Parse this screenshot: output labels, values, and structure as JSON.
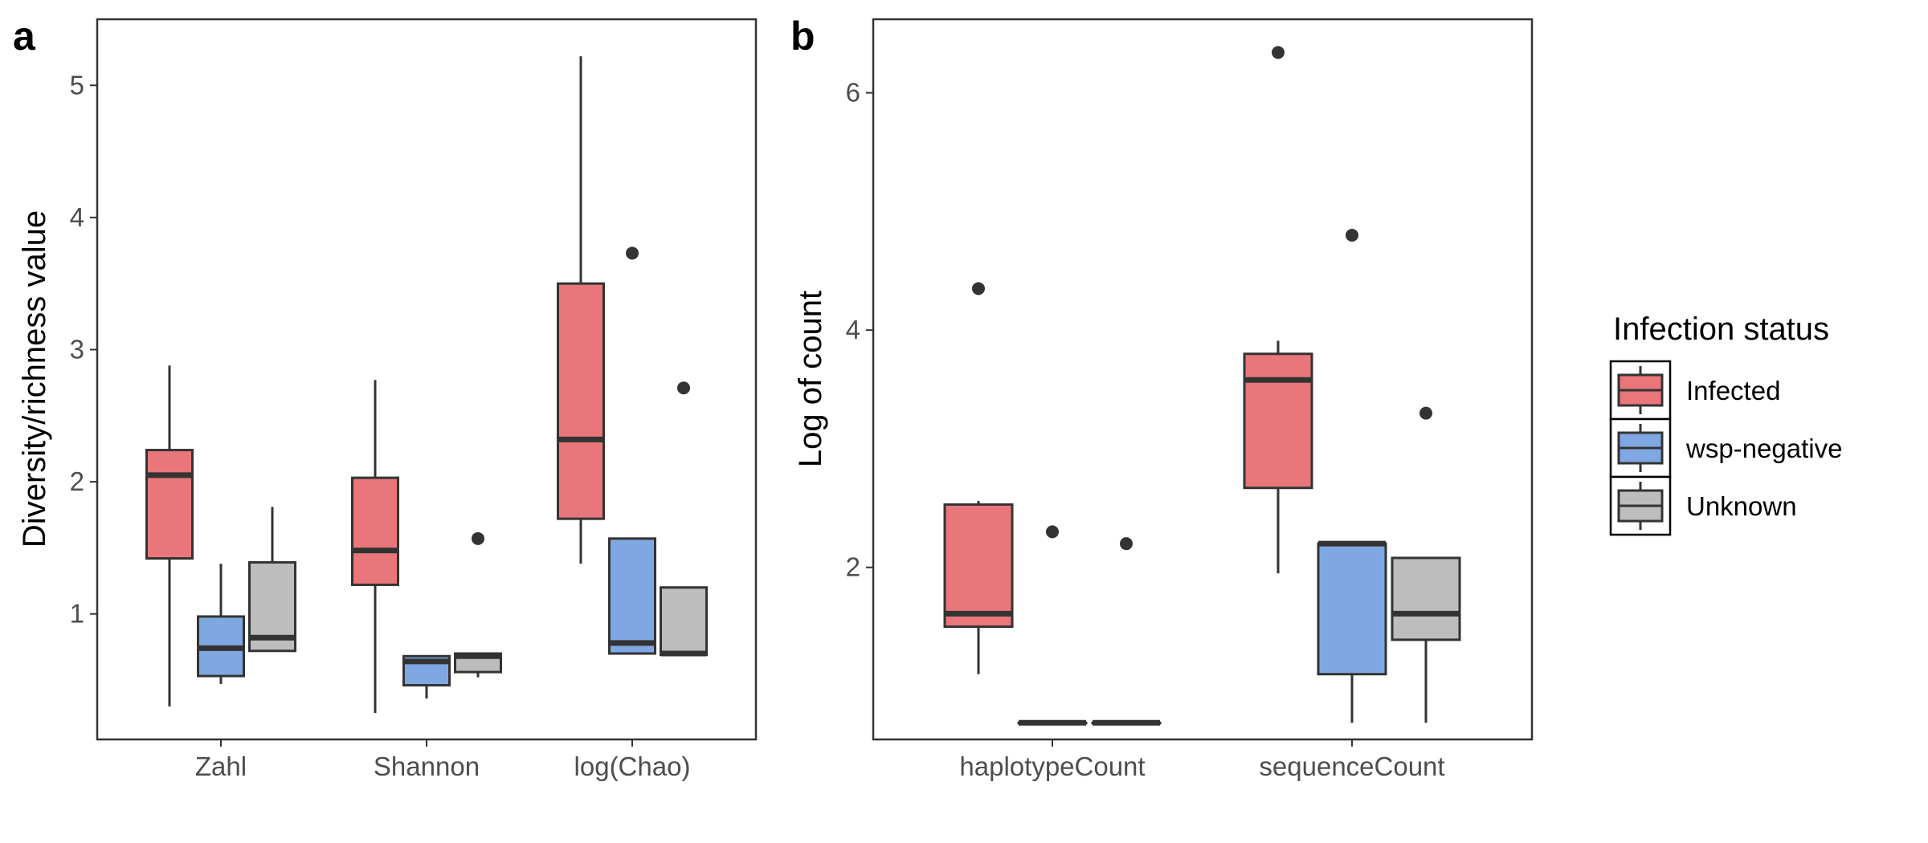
{
  "chart_data": [
    {
      "panel_tag": "a",
      "type": "box",
      "ylabel": "Diversity/richness value",
      "xlabel": "",
      "ylim": [
        0.05,
        5.5
      ],
      "yticks": [
        1,
        2,
        3,
        4,
        5
      ],
      "categories": [
        "Zahl",
        "Shannon",
        "log(Chao)"
      ],
      "series": [
        {
          "name": "Infected",
          "boxes": [
            {
              "whisker_low": 0.3,
              "q1": 1.42,
              "median": 2.05,
              "q3": 2.24,
              "whisker_high": 2.88,
              "outliers": []
            },
            {
              "whisker_low": 0.25,
              "q1": 1.22,
              "median": 1.48,
              "q3": 2.03,
              "whisker_high": 2.77,
              "outliers": []
            },
            {
              "whisker_low": 1.38,
              "q1": 1.72,
              "median": 2.32,
              "q3": 3.5,
              "whisker_high": 5.22,
              "outliers": []
            }
          ]
        },
        {
          "name": "wsp-negative",
          "boxes": [
            {
              "whisker_low": 0.47,
              "q1": 0.53,
              "median": 0.74,
              "q3": 0.98,
              "whisker_high": 1.38,
              "outliers": []
            },
            {
              "whisker_low": 0.36,
              "q1": 0.46,
              "median": 0.64,
              "q3": 0.68,
              "whisker_high": 0.68,
              "outliers": []
            },
            {
              "whisker_low": 0.7,
              "q1": 0.7,
              "median": 0.78,
              "q3": 1.57,
              "whisker_high": 1.57,
              "outliers": [
                3.73
              ]
            }
          ]
        },
        {
          "name": "Unknown",
          "boxes": [
            {
              "whisker_low": 0.72,
              "q1": 0.72,
              "median": 0.82,
              "q3": 1.39,
              "whisker_high": 1.81,
              "outliers": []
            },
            {
              "whisker_low": 0.52,
              "q1": 0.56,
              "median": 0.68,
              "q3": 0.7,
              "whisker_high": 0.7,
              "outliers": [
                1.57
              ]
            },
            {
              "whisker_low": 0.69,
              "q1": 0.69,
              "median": 0.7,
              "q3": 1.2,
              "whisker_high": 1.2,
              "outliers": [
                2.71
              ]
            }
          ]
        }
      ]
    },
    {
      "panel_tag": "b",
      "type": "box",
      "ylabel": "Log of count",
      "xlabel": "",
      "ylim": [
        0.55,
        6.62
      ],
      "yticks": [
        2,
        4,
        6
      ],
      "categories": [
        "haplotypeCount",
        "sequenceCount"
      ],
      "series": [
        {
          "name": "Infected",
          "boxes": [
            {
              "whisker_low": 1.1,
              "q1": 1.5,
              "median": 1.61,
              "q3": 2.53,
              "whisker_high": 2.56,
              "outliers": [
                4.35
              ]
            },
            {
              "whisker_low": 1.95,
              "q1": 2.67,
              "median": 3.58,
              "q3": 3.8,
              "whisker_high": 3.91,
              "outliers": [
                6.34
              ]
            }
          ]
        },
        {
          "name": "wsp-negative",
          "boxes": [
            {
              "whisker_low": 0.69,
              "q1": 0.69,
              "median": 0.69,
              "q3": 0.69,
              "whisker_high": 0.69,
              "outliers": [
                2.3
              ]
            },
            {
              "whisker_low": 0.69,
              "q1": 1.1,
              "median": 2.2,
              "q3": 2.2,
              "whisker_high": 2.2,
              "outliers": [
                4.8
              ]
            }
          ]
        },
        {
          "name": "Unknown",
          "boxes": [
            {
              "whisker_low": 0.69,
              "q1": 0.69,
              "median": 0.69,
              "q3": 0.69,
              "whisker_high": 0.69,
              "outliers": [
                2.2
              ]
            },
            {
              "whisker_low": 0.69,
              "q1": 1.39,
              "median": 1.61,
              "q3": 2.08,
              "whisker_high": 2.08,
              "outliers": [
                3.3
              ]
            }
          ]
        }
      ]
    }
  ],
  "legend": {
    "title": "Infection status",
    "placement": "right",
    "items": [
      {
        "label": "Infected",
        "color": "#E8767A"
      },
      {
        "label": "wsp-negative",
        "color": "#7FA8E3"
      },
      {
        "label": "Unknown",
        "color": "#BDBDBD"
      }
    ]
  },
  "colors": {
    "line": "#333333",
    "panel_border": "#333333",
    "tick_text": "#4d4d4d"
  }
}
